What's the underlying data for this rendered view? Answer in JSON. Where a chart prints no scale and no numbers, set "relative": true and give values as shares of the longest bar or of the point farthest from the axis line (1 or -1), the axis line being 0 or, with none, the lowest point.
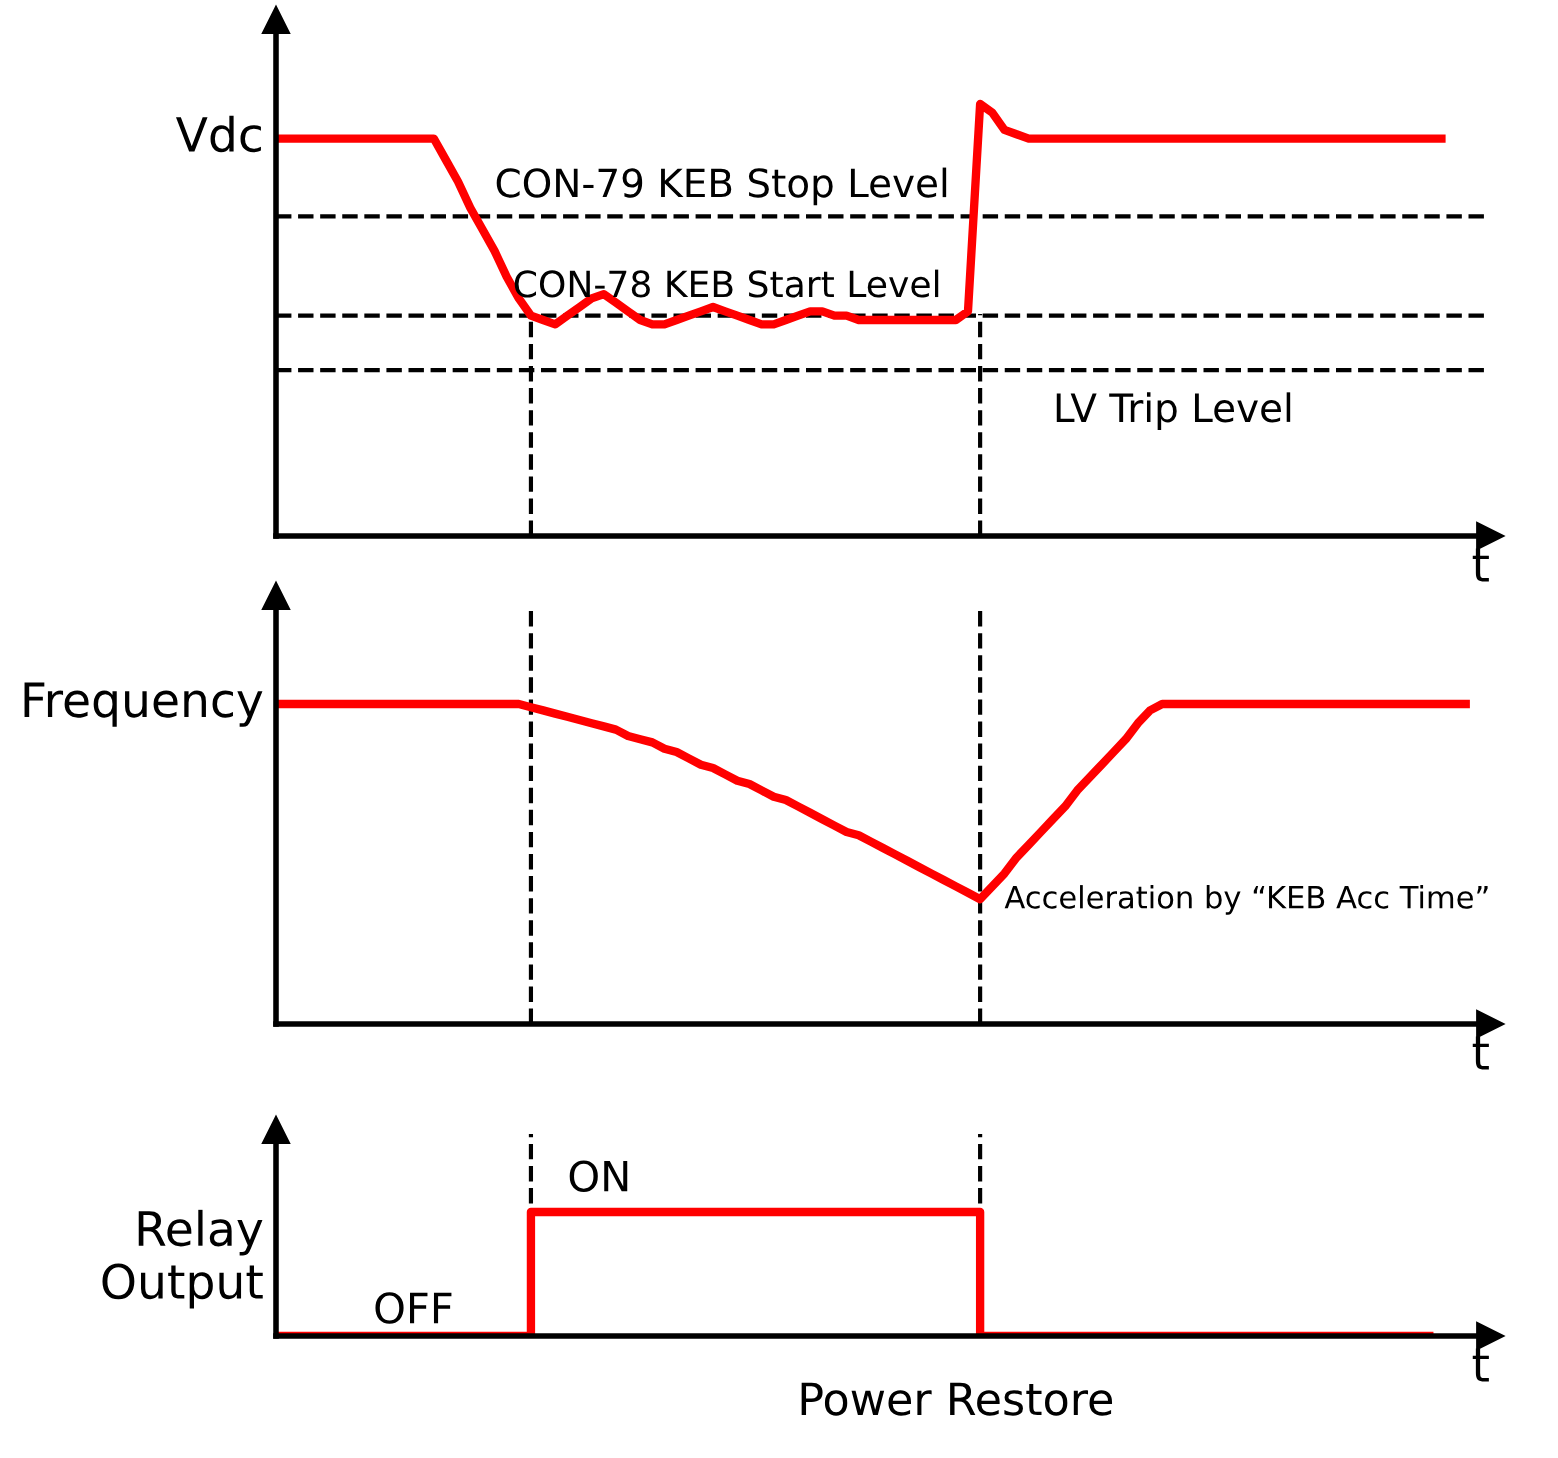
{
  "chart_data": [
    {
      "type": "line",
      "relative": true,
      "ylabel": "Vdc",
      "xlabel": "t",
      "categories": [
        null,
        null,
        null,
        null,
        null,
        null,
        null,
        null,
        null,
        null,
        null,
        null,
        null,
        null,
        null,
        null,
        null,
        null,
        null,
        null,
        null,
        null,
        null,
        null,
        null,
        null,
        null,
        null,
        null,
        null,
        null,
        null,
        null,
        null,
        null,
        null,
        null,
        null,
        null,
        null,
        null,
        null,
        null,
        null,
        null,
        null,
        null,
        null,
        null,
        null,
        null,
        null,
        null,
        null,
        null,
        null,
        null,
        null,
        null,
        null,
        null,
        null,
        null,
        null,
        null,
        null,
        null,
        null,
        null,
        null,
        null,
        null,
        null,
        null,
        null,
        null,
        null,
        null,
        null,
        null,
        null,
        null,
        null,
        null,
        null,
        null,
        null,
        null,
        null,
        null,
        null,
        null,
        null,
        null,
        null,
        null,
        null
      ],
      "series": [
        {
          "color": "#ff0000",
          "values": [
            0.92,
            0.92,
            0.92,
            0.92,
            0.92,
            0.92,
            0.92,
            0.92,
            0.92,
            0.92,
            0.92,
            0.92,
            0.92,
            0.92,
            0.87,
            0.82,
            0.76,
            0.71,
            0.66,
            0.6,
            0.55,
            0.51,
            0.5,
            0.49,
            0.51,
            0.53,
            0.55,
            0.56,
            0.54,
            0.52,
            0.5,
            0.49,
            0.49,
            0.5,
            0.51,
            0.52,
            0.53,
            0.52,
            0.51,
            0.5,
            0.49,
            0.49,
            0.5,
            0.51,
            0.52,
            0.52,
            0.51,
            0.51,
            0.5,
            0.5,
            0.5,
            0.5,
            0.5,
            0.5,
            0.5,
            0.5,
            0.5,
            0.52,
            1.0,
            0.98,
            0.94,
            0.93,
            0.92,
            0.92,
            0.92,
            0.92,
            0.92,
            0.92,
            0.92,
            0.92,
            0.92,
            0.92,
            0.92,
            0.92,
            0.92,
            0.92,
            0.92,
            0.92,
            0.92,
            0.92,
            0.92,
            0.92,
            0.92,
            0.92,
            0.92,
            0.92,
            0.92,
            0.92,
            0.92,
            0.92,
            0.92,
            0.92,
            0.92,
            0.92,
            0.92,
            0.92,
            0.92
          ]
        }
      ],
      "ref_lines": [
        {
          "axis": "y",
          "value": 0.74,
          "label": "CON-79 KEB Stop Level",
          "color": "#000000",
          "line_style": "dashed"
        },
        {
          "axis": "y",
          "value": 0.51,
          "label": "CON-78 KEB Start Level",
          "color": "#000000",
          "line_style": "dashed"
        },
        {
          "axis": "y",
          "value": 0.384,
          "label": "LV Trip Level",
          "color": "#000000",
          "line_style": "dashed"
        }
      ]
    },
    {
      "type": "line",
      "relative": true,
      "ylabel": "Frequency",
      "xlabel": "t",
      "categories": [
        null,
        null,
        null,
        null,
        null,
        null,
        null,
        null,
        null,
        null,
        null,
        null,
        null,
        null,
        null,
        null,
        null,
        null,
        null,
        null,
        null,
        null,
        null,
        null,
        null,
        null,
        null,
        null,
        null,
        null,
        null,
        null,
        null,
        null,
        null,
        null,
        null,
        null,
        null,
        null,
        null,
        null,
        null,
        null,
        null,
        null,
        null,
        null,
        null,
        null,
        null,
        null,
        null,
        null,
        null,
        null,
        null,
        null,
        null,
        null,
        null,
        null,
        null,
        null,
        null,
        null,
        null,
        null,
        null,
        null,
        null,
        null,
        null,
        null,
        null,
        null,
        null,
        null,
        null,
        null,
        null,
        null,
        null,
        null,
        null,
        null,
        null,
        null,
        null,
        null,
        null,
        null,
        null,
        null,
        null,
        null,
        null,
        null,
        null
      ],
      "series": [
        {
          "color": "#ff0000",
          "values": [
            1,
            1,
            1,
            1,
            1,
            1,
            1,
            1,
            1,
            1,
            1,
            1,
            1,
            1,
            1,
            1,
            1,
            1,
            1,
            1,
            1,
            0.99,
            0.98,
            0.97,
            0.96,
            0.95,
            0.94,
            0.93,
            0.92,
            0.9,
            0.89,
            0.88,
            0.86,
            0.85,
            0.83,
            0.81,
            0.8,
            0.78,
            0.76,
            0.75,
            0.73,
            0.71,
            0.7,
            0.68,
            0.66,
            0.64,
            0.62,
            0.6,
            0.59,
            0.57,
            0.55,
            0.53,
            0.51,
            0.49,
            0.47,
            0.45,
            0.43,
            0.41,
            0.39,
            0.43,
            0.47,
            0.52,
            0.56,
            0.6,
            0.64,
            0.68,
            0.73,
            0.77,
            0.81,
            0.85,
            0.89,
            0.94,
            0.98,
            1,
            1,
            1,
            1,
            1,
            1,
            1,
            1,
            1,
            1,
            1,
            1,
            1,
            1,
            1,
            1,
            1,
            1,
            1,
            1,
            1,
            1,
            1,
            1,
            1,
            1
          ]
        }
      ],
      "annotations": [
        "Acceleration by “KEB Acc Time”"
      ]
    },
    {
      "type": "step",
      "relative": true,
      "ylabel": "Relay Output",
      "xlabel": "t",
      "categories": [
        null,
        null,
        null,
        null,
        null,
        null,
        null,
        null,
        null,
        null,
        null,
        null,
        null,
        null,
        null,
        null,
        null,
        null,
        null,
        null,
        null,
        null,
        null,
        null,
        null,
        null,
        null,
        null,
        null,
        null,
        null,
        null,
        null,
        null,
        null,
        null,
        null,
        null,
        null,
        null,
        null,
        null,
        null,
        null,
        null,
        null,
        null,
        null,
        null,
        null,
        null,
        null,
        null,
        null,
        null,
        null,
        null,
        null,
        null,
        null,
        null,
        null,
        null,
        null,
        null,
        null,
        null,
        null,
        null,
        null,
        null,
        null,
        null,
        null,
        null,
        null,
        null,
        null,
        null,
        null,
        null,
        null,
        null,
        null,
        null,
        null,
        null,
        null,
        null,
        null,
        null,
        null,
        null,
        null,
        null,
        null
      ],
      "series": [
        {
          "color": "#ff0000",
          "values": [
            0,
            0,
            0,
            0,
            0,
            0,
            0,
            0,
            0,
            0,
            0,
            0,
            0,
            0,
            0,
            0,
            0,
            0,
            0,
            0,
            0,
            1,
            1,
            1,
            1,
            1,
            1,
            1,
            1,
            1,
            1,
            1,
            1,
            1,
            1,
            1,
            1,
            1,
            1,
            1,
            1,
            1,
            1,
            1,
            1,
            1,
            1,
            1,
            1,
            1,
            1,
            1,
            1,
            1,
            1,
            1,
            1,
            1,
            0,
            0,
            0,
            0,
            0,
            0,
            0,
            0,
            0,
            0,
            0,
            0,
            0,
            0,
            0,
            0,
            0,
            0,
            0,
            0,
            0,
            0,
            0,
            0,
            0,
            0,
            0,
            0,
            0,
            0,
            0,
            0,
            0,
            0,
            0,
            0,
            0,
            0
          ]
        }
      ],
      "annotations": [
        "ON",
        "OFF",
        "Power Restore"
      ]
    }
  ]
}
